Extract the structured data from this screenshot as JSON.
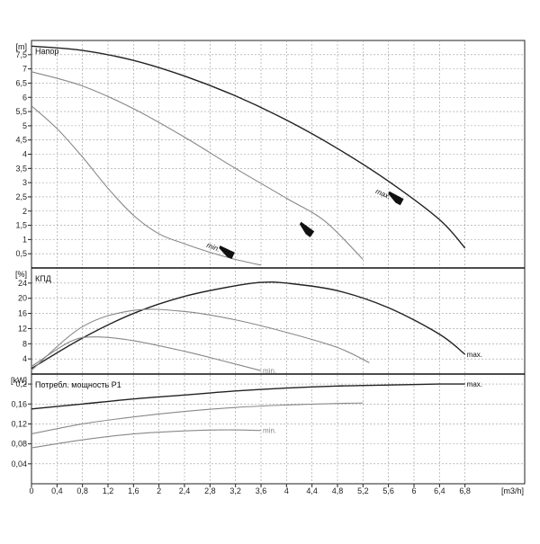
{
  "chart_data": {
    "type": "line",
    "x_unit": "[m3/h]",
    "x_ticks": [
      "0",
      "0,4",
      "0,8",
      "1,2",
      "1,6",
      "2",
      "2,4",
      "2,8",
      "3,2",
      "3,6",
      "4",
      "4,4",
      "4,8",
      "5,2",
      "5,6",
      "6",
      "6,4",
      "6,8"
    ],
    "panels": [
      {
        "id": "head",
        "title": "Напор",
        "y_unit": "[m]",
        "ylim": [
          0,
          8
        ],
        "y_ticks": [
          "0,5",
          "1",
          "1,5",
          "2",
          "2,5",
          "3",
          "3,5",
          "4",
          "4,5",
          "5",
          "5,5",
          "6",
          "6,5",
          "7",
          "7,5"
        ],
        "series": [
          {
            "name": "max.",
            "color": "#222222",
            "points": [
              [
                0,
                7.8
              ],
              [
                0.8,
                7.65
              ],
              [
                1.6,
                7.3
              ],
              [
                2.4,
                6.75
              ],
              [
                3.2,
                6.05
              ],
              [
                4.0,
                5.2
              ],
              [
                4.8,
                4.2
              ],
              [
                5.6,
                3.05
              ],
              [
                6.4,
                1.7
              ],
              [
                6.8,
                0.7
              ]
            ]
          },
          {
            "name": "",
            "color": "#888888",
            "points": [
              [
                0,
                6.9
              ],
              [
                0.8,
                6.4
              ],
              [
                1.6,
                5.6
              ],
              [
                2.4,
                4.6
              ],
              [
                3.2,
                3.5
              ],
              [
                4.0,
                2.45
              ],
              [
                4.6,
                1.65
              ],
              [
                5.2,
                0.3
              ]
            ]
          },
          {
            "name": "min.",
            "color": "#888888",
            "points": [
              [
                0,
                5.7
              ],
              [
                0.4,
                4.9
              ],
              [
                0.8,
                3.9
              ],
              [
                1.2,
                2.8
              ],
              [
                1.6,
                1.85
              ],
              [
                2.0,
                1.2
              ],
              [
                2.4,
                0.85
              ],
              [
                2.8,
                0.55
              ],
              [
                3.2,
                0.3
              ],
              [
                3.6,
                0.1
              ]
            ]
          }
        ]
      },
      {
        "id": "efficiency",
        "title": "КПД",
        "y_unit": "[%]",
        "ylim": [
          0,
          28
        ],
        "y_ticks": [
          "4",
          "8",
          "12",
          "16",
          "20",
          "24"
        ],
        "series": [
          {
            "name": "max.",
            "color": "#222222",
            "points": [
              [
                0,
                1.5
              ],
              [
                0.8,
                9.5
              ],
              [
                1.6,
                16
              ],
              [
                2.4,
                20.5
              ],
              [
                3.2,
                23.3
              ],
              [
                3.6,
                24.2
              ],
              [
                4.0,
                24
              ],
              [
                4.8,
                22
              ],
              [
                5.6,
                17.5
              ],
              [
                6.4,
                10.5
              ],
              [
                6.8,
                5.2
              ]
            ]
          },
          {
            "name": "",
            "color": "#888888",
            "points": [
              [
                0,
                1
              ],
              [
                0.8,
                12.5
              ],
              [
                1.6,
                16.8
              ],
              [
                2.4,
                16.5
              ],
              [
                3.2,
                14.3
              ],
              [
                4.0,
                11
              ],
              [
                4.8,
                7
              ],
              [
                5.3,
                3
              ]
            ]
          },
          {
            "name": "min.",
            "color": "#888888",
            "points": [
              [
                0,
                2
              ],
              [
                0.6,
                8.5
              ],
              [
                1.0,
                9.8
              ],
              [
                1.6,
                8.8
              ],
              [
                2.4,
                6
              ],
              [
                3.0,
                3.5
              ],
              [
                3.6,
                0.9
              ]
            ]
          }
        ]
      },
      {
        "id": "power",
        "title": "Потребл. мощность P1",
        "y_unit": "[kW]",
        "ylim": [
          0,
          0.22
        ],
        "y_ticks": [
          "0,04",
          "0,08",
          "0,12",
          "0,16",
          "0,2"
        ],
        "series": [
          {
            "name": "max.",
            "color": "#222222",
            "points": [
              [
                0,
                0.15
              ],
              [
                0.8,
                0.16
              ],
              [
                1.6,
                0.17
              ],
              [
                2.4,
                0.178
              ],
              [
                3.2,
                0.186
              ],
              [
                4.0,
                0.192
              ],
              [
                4.8,
                0.196
              ],
              [
                5.6,
                0.198
              ],
              [
                6.4,
                0.2
              ],
              [
                6.8,
                0.2
              ]
            ]
          },
          {
            "name": "",
            "color": "#888888",
            "points": [
              [
                0,
                0.1
              ],
              [
                0.8,
                0.12
              ],
              [
                1.6,
                0.134
              ],
              [
                2.4,
                0.145
              ],
              [
                3.2,
                0.153
              ],
              [
                4.0,
                0.158
              ],
              [
                4.8,
                0.161
              ],
              [
                5.2,
                0.162
              ]
            ]
          },
          {
            "name": "min.",
            "color": "#888888",
            "points": [
              [
                0,
                0.072
              ],
              [
                0.8,
                0.088
              ],
              [
                1.6,
                0.1
              ],
              [
                2.4,
                0.106
              ],
              [
                3.0,
                0.108
              ],
              [
                3.6,
                0.107
              ]
            ]
          }
        ]
      }
    ]
  }
}
